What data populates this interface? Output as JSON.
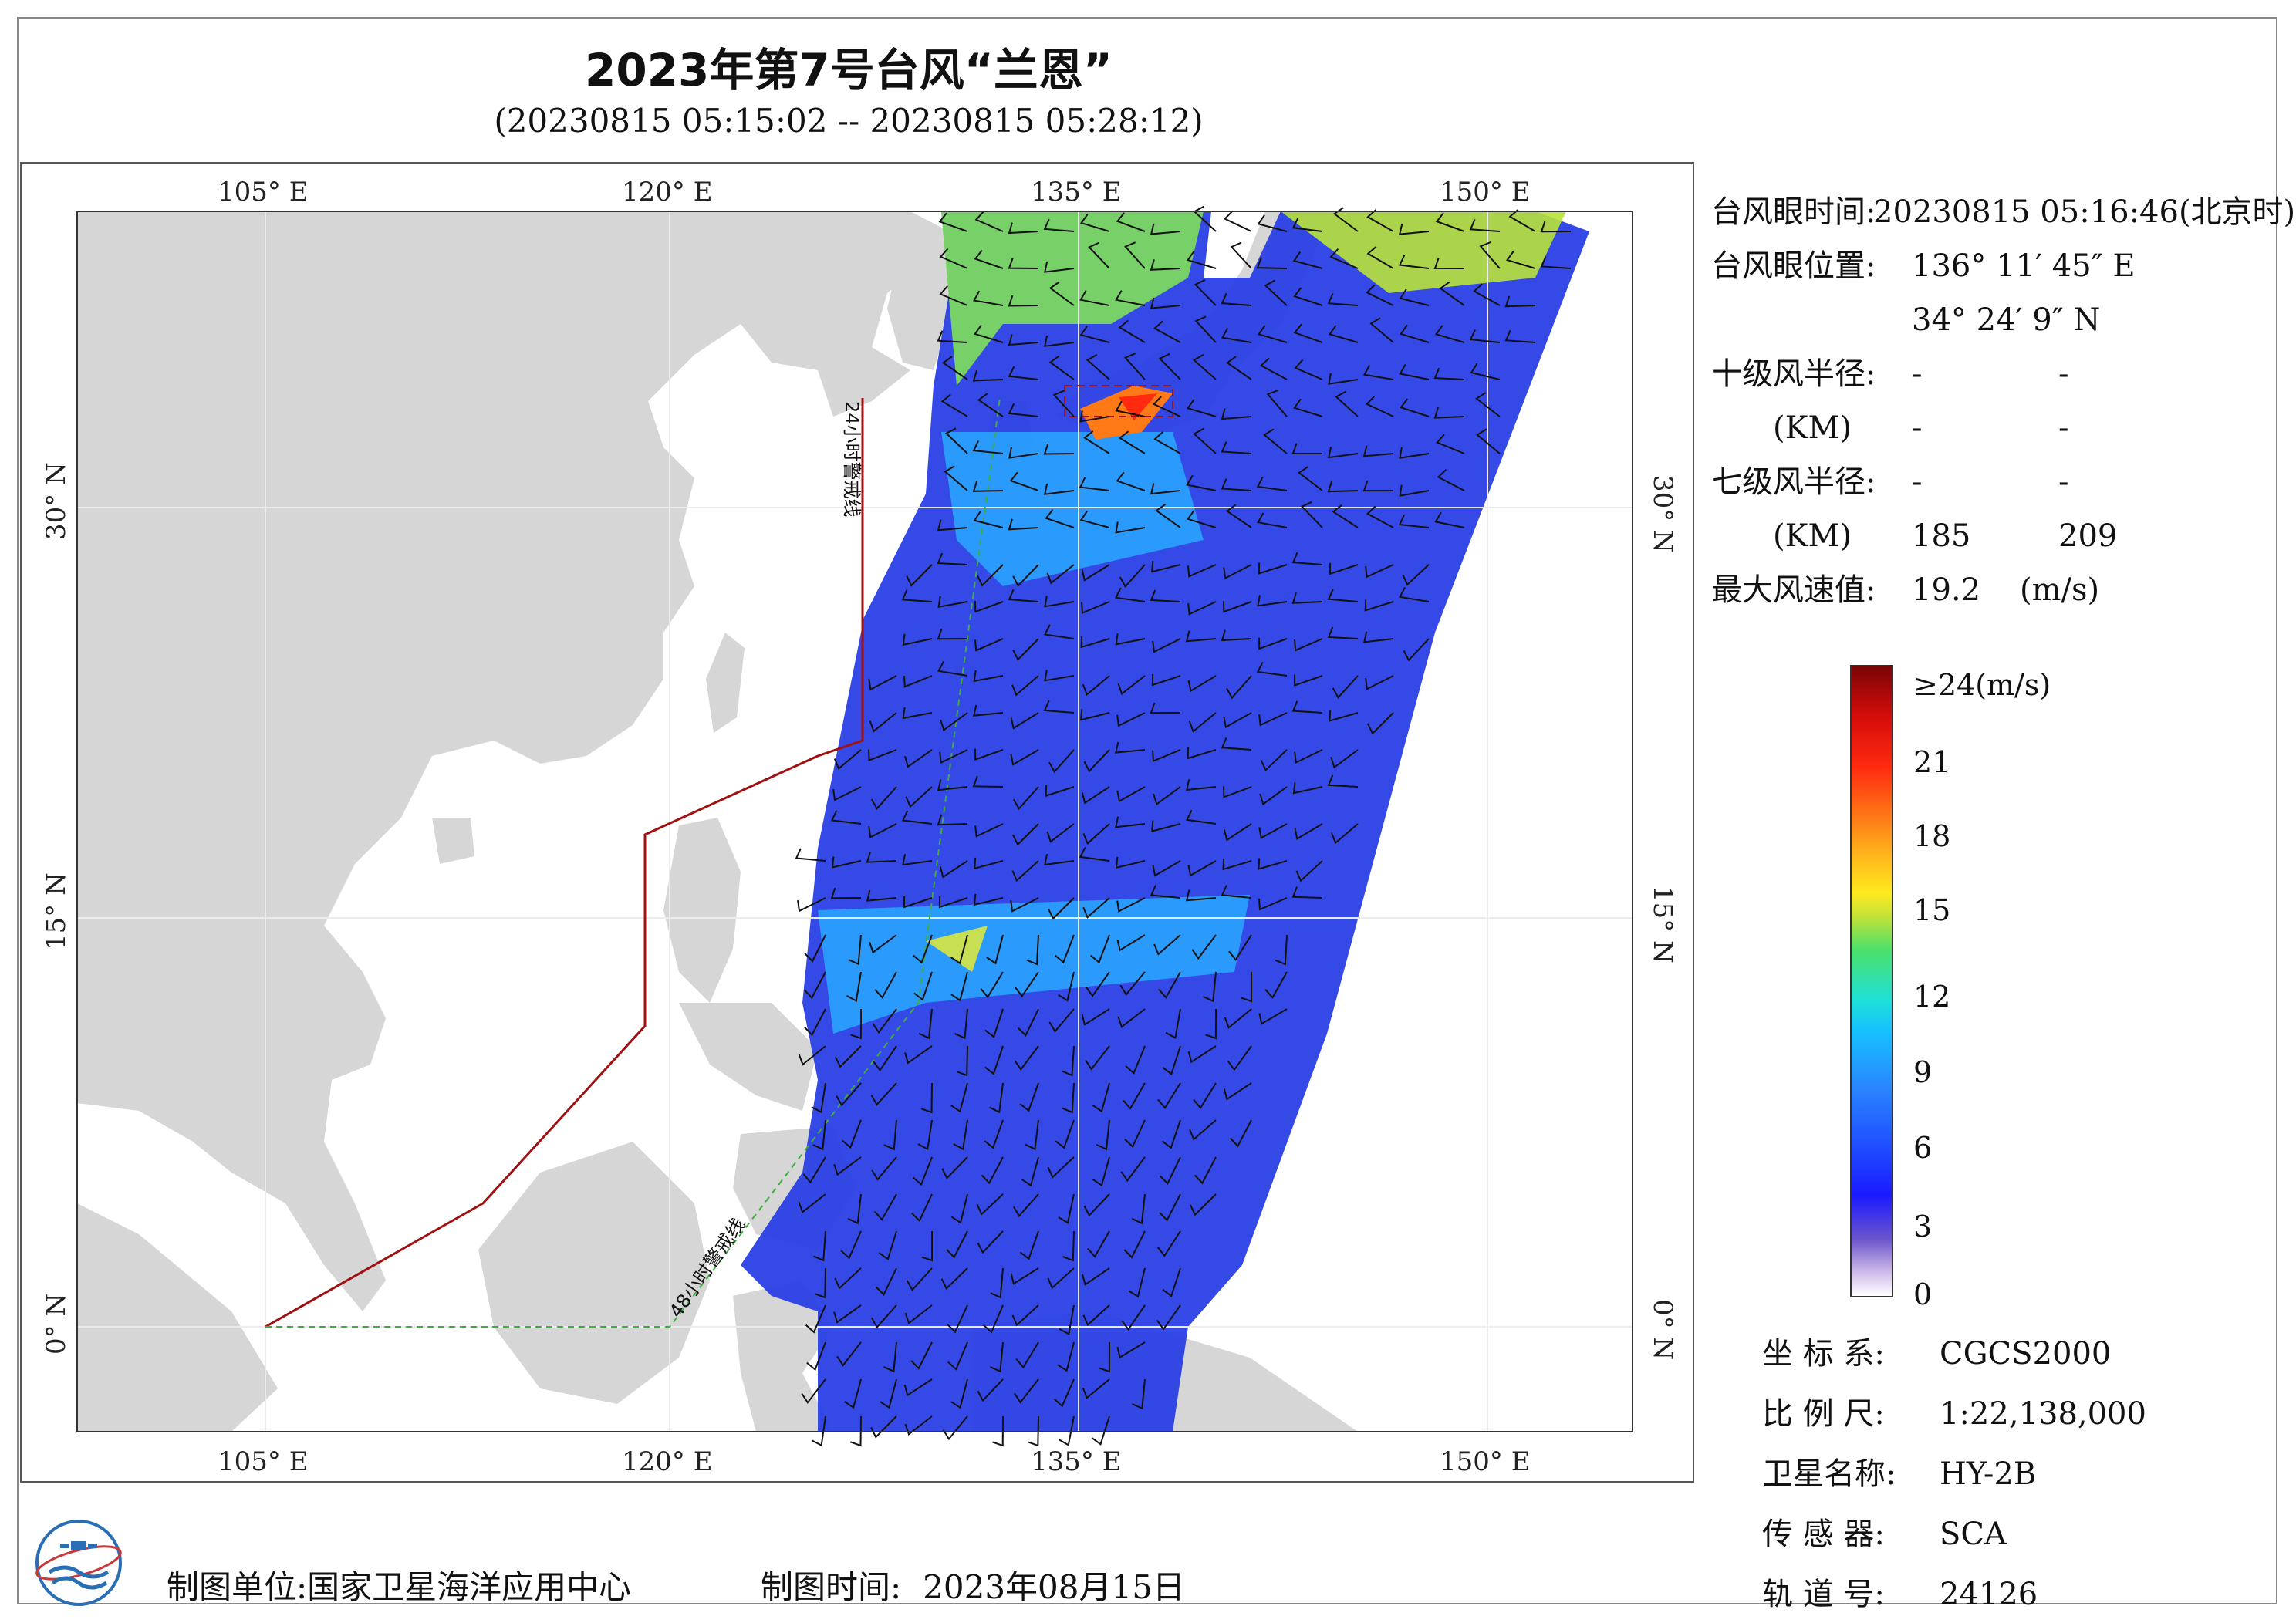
{
  "title": "2023年第7号台风“兰恩”",
  "subtitle": "(20230815 05:15:02 -- 20230815 05:28:12)",
  "axes": {
    "lon_labels": [
      "105° E",
      "120° E",
      "135° E",
      "150° E"
    ],
    "lat_labels": [
      "30° N",
      "15° N",
      "0° N"
    ]
  },
  "warning_lines": {
    "line_24h": "24小时警戒线",
    "line_48h": "48小时警戒线"
  },
  "info": {
    "eye_time_label": "台风眼时间:",
    "eye_time": "20230815 05:16:46(北京时)",
    "eye_pos_label": "台风眼位置:",
    "eye_lon": "136° 11′ 45″ E",
    "eye_lat": "34° 24′ 9″ N",
    "r10_label": "十级风半径:",
    "r10_unit": "(KM)",
    "r10_values": [
      "-",
      "-",
      "-",
      "-"
    ],
    "r7_label": "七级风半径:",
    "r7_unit": "(KM)",
    "r7_values": [
      "-",
      "-",
      "185",
      "209"
    ],
    "maxwind_label": "最大风速值:",
    "maxwind_value": "19.2",
    "maxwind_unit": "(m/s)"
  },
  "colorbar": {
    "ticks": [
      "≥24(m/s)",
      "21",
      "18",
      "15",
      "12",
      "9",
      "6",
      "3",
      "0"
    ]
  },
  "meta": [
    {
      "k": "坐 标 系:",
      "v": "CGCS2000"
    },
    {
      "k": "比 例 尺:",
      "v": "1:22,138,000"
    },
    {
      "k": "卫星名称:",
      "v": "HY-2B"
    },
    {
      "k": "传 感 器:",
      "v": "SCA"
    },
    {
      "k": "轨 道 号:",
      "v": "24126"
    }
  ],
  "footer": {
    "maker_label": "制图单位:",
    "maker": "国家卫星海洋应用中心",
    "date_label": "制图时间:",
    "date": "2023年08月15日"
  },
  "colors": {
    "land": "#d6d6d6",
    "warn24": "#a01010",
    "warn48": "#3fae3f",
    "low": "#2a3fe6",
    "mid": "#28a8ff",
    "high": "#ffb51c"
  }
}
